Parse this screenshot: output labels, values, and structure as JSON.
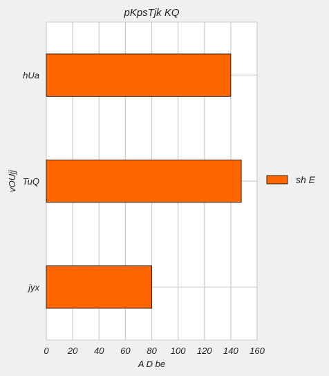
{
  "chart_data": {
    "type": "bar",
    "orientation": "horizontal",
    "title": "pKpsTjk KQ",
    "xlabel": "A D be",
    "ylabel": "vOUjj",
    "categories": [
      "hUa",
      "TuQ",
      "jyx"
    ],
    "series": [
      {
        "name": "sh E",
        "values": [
          140,
          148,
          80
        ],
        "color": "#ff6600"
      }
    ],
    "xlim": [
      0,
      160
    ],
    "xticks": [
      0,
      20,
      40,
      60,
      80,
      100,
      120,
      140,
      160
    ],
    "grid": true,
    "legend_position": "right"
  }
}
